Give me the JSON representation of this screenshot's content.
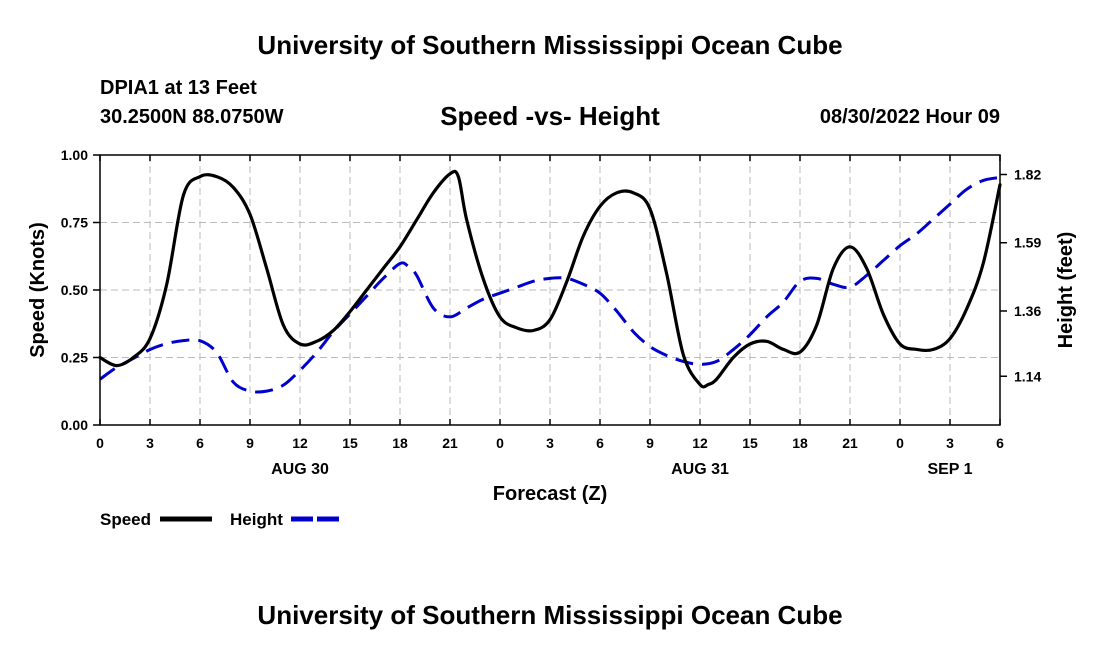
{
  "header": {
    "main_title": "University of Southern Mississippi Ocean Cube",
    "station": "DPIA1 at 13 Feet",
    "coords": "30.2500N  88.0750W",
    "datetime": "08/30/2022 Hour 09",
    "bottom_title": "University of Southern Mississippi Ocean Cube"
  },
  "chart_data": {
    "type": "line",
    "title": "Speed -vs- Height",
    "xlabel": "Forecast (Z)",
    "ylabel": "Speed (Knots)",
    "y2label": "Height (feet)",
    "x_tick_labels": [
      "0",
      "3",
      "6",
      "9",
      "12",
      "15",
      "18",
      "21",
      "0",
      "3",
      "6",
      "9",
      "12",
      "15",
      "18",
      "21",
      "0",
      "3",
      "6"
    ],
    "x_ticks_hours": [
      0,
      3,
      6,
      9,
      12,
      15,
      18,
      21,
      24,
      27,
      30,
      33,
      36,
      39,
      42,
      45,
      48,
      51,
      54
    ],
    "x_date_labels": [
      {
        "label": "AUG 30",
        "hour": 12
      },
      {
        "label": "AUG 31",
        "hour": 36
      },
      {
        "label": "SEP 1",
        "hour": 51
      }
    ],
    "xlim": [
      0,
      54
    ],
    "ylim": [
      0,
      1.0
    ],
    "y_ticks": [
      0.0,
      0.25,
      0.5,
      0.75,
      1.0
    ],
    "y_tick_labels": [
      "0.00",
      "0.25",
      "0.50",
      "0.75",
      "1.00"
    ],
    "y2lim": [
      0.9757,
      1.8857
    ],
    "y2_ticks": [
      1.14,
      1.36,
      1.59,
      1.82
    ],
    "y2_tick_labels": [
      "1.14",
      "1.36",
      "1.59",
      "1.82"
    ],
    "grid": true,
    "legend": [
      {
        "name": "Speed",
        "color": "#000000",
        "dash": "solid"
      },
      {
        "name": "Height",
        "color": "#0000cc",
        "dash": "dashed"
      }
    ],
    "series": [
      {
        "name": "Speed",
        "axis": "left",
        "color": "#000000",
        "x": [
          0,
          1,
          2,
          3,
          4,
          5,
          6,
          7,
          8,
          9,
          10,
          11,
          12,
          13,
          14,
          15,
          16,
          17,
          18,
          19,
          20,
          21,
          21.5,
          22,
          23,
          24,
          25,
          26,
          27,
          28,
          29,
          30,
          31,
          32,
          33,
          34,
          35,
          36,
          36.5,
          37,
          38,
          39,
          40,
          41,
          42,
          43,
          44,
          45,
          46,
          47,
          48,
          49,
          50,
          51,
          52,
          53,
          54
        ],
        "y": [
          0.25,
          0.22,
          0.25,
          0.32,
          0.52,
          0.85,
          0.92,
          0.92,
          0.88,
          0.78,
          0.58,
          0.37,
          0.3,
          0.31,
          0.35,
          0.42,
          0.5,
          0.58,
          0.66,
          0.76,
          0.86,
          0.93,
          0.92,
          0.76,
          0.54,
          0.4,
          0.36,
          0.35,
          0.39,
          0.53,
          0.7,
          0.81,
          0.86,
          0.86,
          0.8,
          0.56,
          0.26,
          0.15,
          0.15,
          0.17,
          0.25,
          0.3,
          0.31,
          0.28,
          0.27,
          0.37,
          0.58,
          0.66,
          0.58,
          0.41,
          0.3,
          0.28,
          0.28,
          0.32,
          0.43,
          0.6,
          0.89
        ]
      },
      {
        "name": "Height",
        "axis": "right",
        "color": "#0000cc",
        "x": [
          0,
          1,
          2,
          3,
          4,
          5,
          6,
          7,
          8,
          9,
          10,
          11,
          12,
          13,
          14,
          15,
          16,
          17,
          18,
          18.5,
          19,
          20,
          21,
          22,
          23,
          24,
          25,
          26,
          27,
          28,
          29,
          30,
          31,
          32,
          33,
          34,
          35,
          36,
          37,
          38,
          39,
          40,
          41,
          42,
          43,
          44,
          45,
          46,
          47,
          48,
          49,
          50,
          51,
          52,
          53,
          54
        ],
        "y": [
          1.13,
          1.17,
          1.2,
          1.23,
          1.25,
          1.26,
          1.26,
          1.22,
          1.12,
          1.09,
          1.09,
          1.11,
          1.16,
          1.22,
          1.29,
          1.35,
          1.41,
          1.47,
          1.52,
          1.51,
          1.48,
          1.37,
          1.34,
          1.37,
          1.4,
          1.42,
          1.44,
          1.46,
          1.47,
          1.47,
          1.45,
          1.42,
          1.36,
          1.29,
          1.24,
          1.21,
          1.19,
          1.18,
          1.19,
          1.23,
          1.28,
          1.34,
          1.39,
          1.46,
          1.47,
          1.45,
          1.44,
          1.48,
          1.53,
          1.58,
          1.62,
          1.67,
          1.72,
          1.77,
          1.8,
          1.81
        ]
      }
    ]
  }
}
